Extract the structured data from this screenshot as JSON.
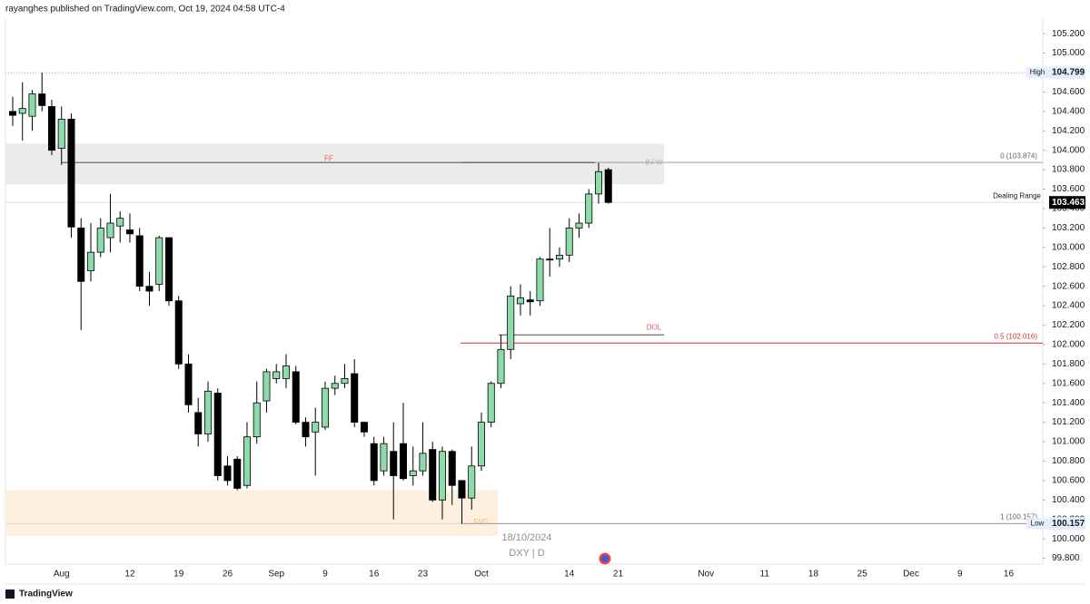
{
  "header": "rayanghes published on TradingView.com, Oct 19, 2024 04:58 UTC-4",
  "footer": "TradingView",
  "chart_data": {
    "type": "candlestick",
    "symbol": "DXY | D",
    "date": "18/10/2024",
    "categories": [
      null,
      null,
      null,
      null,
      null,
      "Aug",
      null,
      null,
      null,
      null,
      null,
      null,
      "12",
      null,
      null,
      null,
      null,
      "19",
      null,
      null,
      null,
      null,
      "26",
      null,
      null,
      null,
      null,
      "Sep",
      null,
      null,
      null,
      null,
      "9",
      null,
      null,
      null,
      null,
      "16",
      null,
      null,
      null,
      null,
      "23",
      null,
      null,
      null,
      null,
      null,
      "Oct",
      null,
      null,
      null,
      null,
      null,
      null,
      null,
      null,
      "14",
      null,
      null,
      null,
      null,
      "21",
      null,
      null,
      null,
      null,
      null,
      null,
      null,
      null,
      "Nov",
      null,
      null,
      null,
      null,
      null,
      "11",
      null,
      null,
      null,
      null,
      "18",
      null,
      null,
      null,
      null,
      "25",
      null,
      null,
      null,
      null,
      "Dec",
      null,
      null,
      null,
      null,
      "9",
      null,
      null,
      null,
      null,
      "16",
      null
    ],
    "open": [
      104.4,
      104.38,
      104.35,
      104.58,
      104.45,
      104.02,
      104.32,
      103.2,
      102.76,
      102.95,
      103.1,
      103.22,
      103.18,
      103.12,
      102.6,
      102.62,
      103.1,
      102.45,
      101.8,
      101.3,
      101.08,
      101.5,
      100.75,
      100.82,
      100.55,
      101.05,
      101.42,
      101.65,
      101.65,
      101.72,
      101.2,
      101.1,
      101.15,
      101.55,
      101.6,
      101.7,
      101.2,
      100.98,
      100.7,
      100.9,
      100.98,
      100.65,
      100.7,
      100.92,
      100.4,
      100.9,
      100.6,
      100.42,
      100.75,
      101.2,
      101.6,
      101.95,
      102.42,
      102.46,
      102.45,
      102.88,
      102.88,
      102.92,
      103.2,
      103.25,
      103.55,
      103.8,
      null,
      null,
      null,
      null,
      null,
      null,
      null,
      null,
      null,
      null,
      null,
      null,
      null,
      null,
      null,
      null,
      null,
      null,
      null,
      null,
      null,
      null,
      null,
      null,
      null,
      null,
      null,
      null,
      null,
      null,
      null,
      null,
      null,
      null,
      null,
      null,
      null,
      null,
      null,
      null,
      null,
      null
    ],
    "high": [
      104.55,
      104.7,
      104.62,
      104.799,
      104.52,
      104.45,
      104.38,
      103.3,
      103.25,
      103.3,
      103.55,
      103.37,
      103.35,
      103.2,
      102.75,
      103.12,
      103.1,
      102.5,
      101.9,
      101.45,
      101.62,
      101.55,
      100.85,
      100.85,
      101.2,
      101.62,
      101.75,
      101.8,
      101.9,
      101.78,
      101.25,
      101.35,
      101.62,
      101.68,
      101.8,
      101.85,
      101.2,
      101.05,
      101.05,
      101.2,
      101.4,
      100.95,
      101.2,
      101.0,
      100.95,
      100.92,
      100.6,
      100.95,
      101.3,
      101.62,
      102.1,
      102.6,
      102.62,
      102.55,
      102.9,
      103.2,
      103.0,
      103.3,
      103.35,
      103.6,
      103.87,
      103.82,
      null,
      null,
      null,
      null,
      null,
      null,
      null,
      null,
      null,
      null,
      null,
      null,
      null,
      null,
      null,
      null,
      null,
      null,
      null,
      null,
      null,
      null,
      null,
      null,
      null,
      null,
      null,
      null,
      null,
      null,
      null,
      null,
      null,
      null,
      null,
      null,
      null,
      null,
      null,
      null,
      null,
      null
    ],
    "low": [
      104.25,
      104.1,
      104.2,
      104.4,
      103.95,
      103.85,
      103.1,
      102.15,
      102.65,
      102.9,
      102.95,
      103.05,
      103.05,
      102.55,
      102.4,
      102.55,
      102.4,
      101.75,
      101.3,
      100.95,
      101.0,
      100.6,
      100.55,
      100.5,
      100.52,
      100.98,
      101.3,
      101.6,
      101.55,
      101.18,
      100.95,
      100.65,
      101.12,
      101.48,
      101.55,
      101.15,
      101.05,
      100.55,
      100.65,
      100.2,
      100.6,
      100.55,
      100.65,
      100.38,
      100.2,
      100.35,
      100.157,
      100.3,
      100.7,
      101.15,
      101.55,
      101.85,
      102.3,
      102.3,
      102.4,
      102.7,
      102.8,
      102.85,
      103.1,
      103.2,
      103.45,
      103.45,
      null,
      null,
      null,
      null,
      null,
      null,
      null,
      null,
      null,
      null,
      null,
      null,
      null,
      null,
      null,
      null,
      null,
      null,
      null,
      null,
      null,
      null,
      null,
      null,
      null,
      null,
      null,
      null,
      null,
      null,
      null,
      null,
      null,
      null,
      null,
      null,
      null,
      null,
      null,
      null,
      null,
      null
    ],
    "close": [
      104.36,
      104.43,
      104.58,
      104.46,
      104.0,
      104.32,
      103.21,
      102.65,
      102.95,
      103.2,
      103.25,
      103.3,
      103.14,
      102.6,
      102.55,
      103.1,
      102.45,
      101.8,
      101.38,
      101.08,
      101.52,
      100.65,
      100.6,
      100.52,
      101.05,
      101.4,
      101.72,
      101.72,
      101.78,
      101.2,
      101.05,
      101.2,
      101.55,
      101.6,
      101.65,
      101.2,
      101.1,
      100.6,
      100.98,
      100.65,
      100.62,
      100.7,
      100.88,
      100.4,
      100.9,
      100.55,
      100.42,
      100.75,
      101.2,
      101.6,
      101.95,
      102.5,
      102.48,
      102.44,
      102.88,
      102.87,
      102.92,
      103.2,
      103.25,
      103.55,
      103.78,
      103.463,
      null,
      null,
      null,
      null,
      null,
      null,
      null,
      null,
      null,
      null,
      null,
      null,
      null,
      null,
      null,
      null,
      null,
      null,
      null,
      null,
      null,
      null,
      null,
      null,
      null,
      null,
      null,
      null,
      null,
      null,
      null,
      null,
      null,
      null,
      null,
      null,
      null,
      null,
      null,
      null,
      null,
      null
    ],
    "up_color": "#8ddbab",
    "down_color": "#000000",
    "ylim": [
      99.74,
      105.36
    ],
    "yticks": [
      {
        "value": 99.8,
        "label": "99.800"
      },
      {
        "value": 100,
        "label": "100.000"
      },
      {
        "value": 100.2,
        "label": "100.200"
      },
      {
        "value": 100.4,
        "label": "100.400"
      },
      {
        "value": 100.6,
        "label": "100.600"
      },
      {
        "value": 100.8,
        "label": "100.800"
      },
      {
        "value": 101,
        "label": "101.000"
      },
      {
        "value": 101.2,
        "label": "101.200"
      },
      {
        "value": 101.4,
        "label": "101.400"
      },
      {
        "value": 101.6,
        "label": "101.600"
      },
      {
        "value": 101.8,
        "label": "101.800"
      },
      {
        "value": 102,
        "label": "102.000"
      },
      {
        "value": 102.2,
        "label": "102.200"
      },
      {
        "value": 102.4,
        "label": "102.400"
      },
      {
        "value": 102.6,
        "label": "102.600"
      },
      {
        "value": 102.8,
        "label": "102.800"
      },
      {
        "value": 103,
        "label": "103.000"
      },
      {
        "value": 103.2,
        "label": "103.200"
      },
      {
        "value": 103.4,
        "label": "103.400"
      },
      {
        "value": 103.6,
        "label": "103.600"
      },
      {
        "value": 103.8,
        "label": "103.800"
      },
      {
        "value": 104,
        "label": "104.000"
      },
      {
        "value": 104.2,
        "label": "104.200"
      },
      {
        "value": 104.4,
        "label": "104.400"
      },
      {
        "value": 104.6,
        "label": "104.600"
      },
      {
        "value": 104.8,
        "label": "104.800"
      },
      {
        "value": 105,
        "label": "105.000"
      },
      {
        "value": 105.2,
        "label": "105.200"
      }
    ],
    "grid": false,
    "zones": [
      {
        "label": "FF",
        "from": 103.65,
        "to": 104.07,
        "color": "#ebebeb",
        "text_color": "#e05a5a"
      },
      {
        "label": "FVG",
        "from": 100.03,
        "to": 100.5,
        "color": "#fdf0de",
        "text_color": "#f0b860"
      }
    ],
    "levels": [
      {
        "label": "0 (103.874)",
        "value": 103.874,
        "color": "#9e9e9e"
      },
      {
        "label": "0.5 (102.016)",
        "value": 102.016,
        "color": "#d32f2f"
      },
      {
        "label": "1 (100.157)",
        "value": 100.157,
        "color": "#9e9e9e"
      }
    ],
    "annotations": [
      {
        "text": "BJ W",
        "value": 103.874,
        "color": "#b0b0b0"
      },
      {
        "text": "DOL",
        "value": 102.1,
        "color": "#e05a5a"
      }
    ],
    "price_tags": [
      {
        "name": "High",
        "value": 104.799
      },
      {
        "name": "Dealing Range",
        "value": 103.463
      },
      {
        "name": "Low",
        "value": 100.157
      }
    ]
  }
}
